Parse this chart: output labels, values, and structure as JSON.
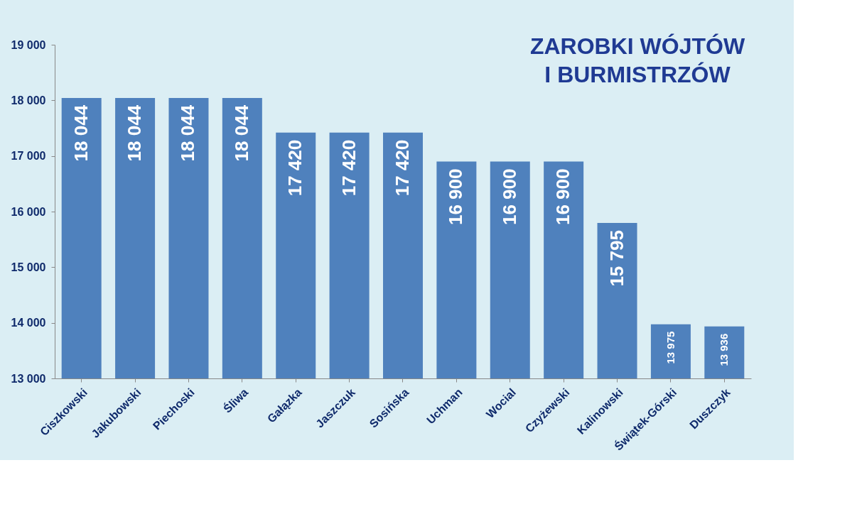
{
  "chart_data": {
    "type": "bar",
    "title": "ZAROBKI WÓJTÓW\nI BURMISTRZÓW",
    "categories": [
      "Ciszkowski",
      "Jakubowski",
      "Piechoski",
      "Śliwa",
      "Gałązka",
      "Jaszczuk",
      "Sosińska",
      "Uchman",
      "Wocial",
      "Czyżewski",
      "Kalinowski",
      "Świątek-Górski",
      "Duszczyk"
    ],
    "values": [
      18044,
      18044,
      18044,
      18044,
      17420,
      17420,
      17420,
      16900,
      16900,
      16900,
      15795,
      13975,
      13936
    ],
    "value_labels": [
      "18 044",
      "18 044",
      "18 044",
      "18 044",
      "17 420",
      "17 420",
      "17 420",
      "16 900",
      "16 900",
      "16 900",
      "15 795",
      "13 975",
      "13 936"
    ],
    "color": "#4f81bd",
    "ylim": [
      13000,
      19000
    ],
    "yticks": [
      {
        "value": 13000,
        "label": "13 000"
      },
      {
        "value": 14000,
        "label": "14 000"
      },
      {
        "value": 15000,
        "label": "15 000"
      },
      {
        "value": 16000,
        "label": "16 000"
      },
      {
        "value": 17000,
        "label": "17 000"
      },
      {
        "value": 18000,
        "label": "18 000"
      },
      {
        "value": 19000,
        "label": "19 000"
      }
    ],
    "grid": false
  }
}
